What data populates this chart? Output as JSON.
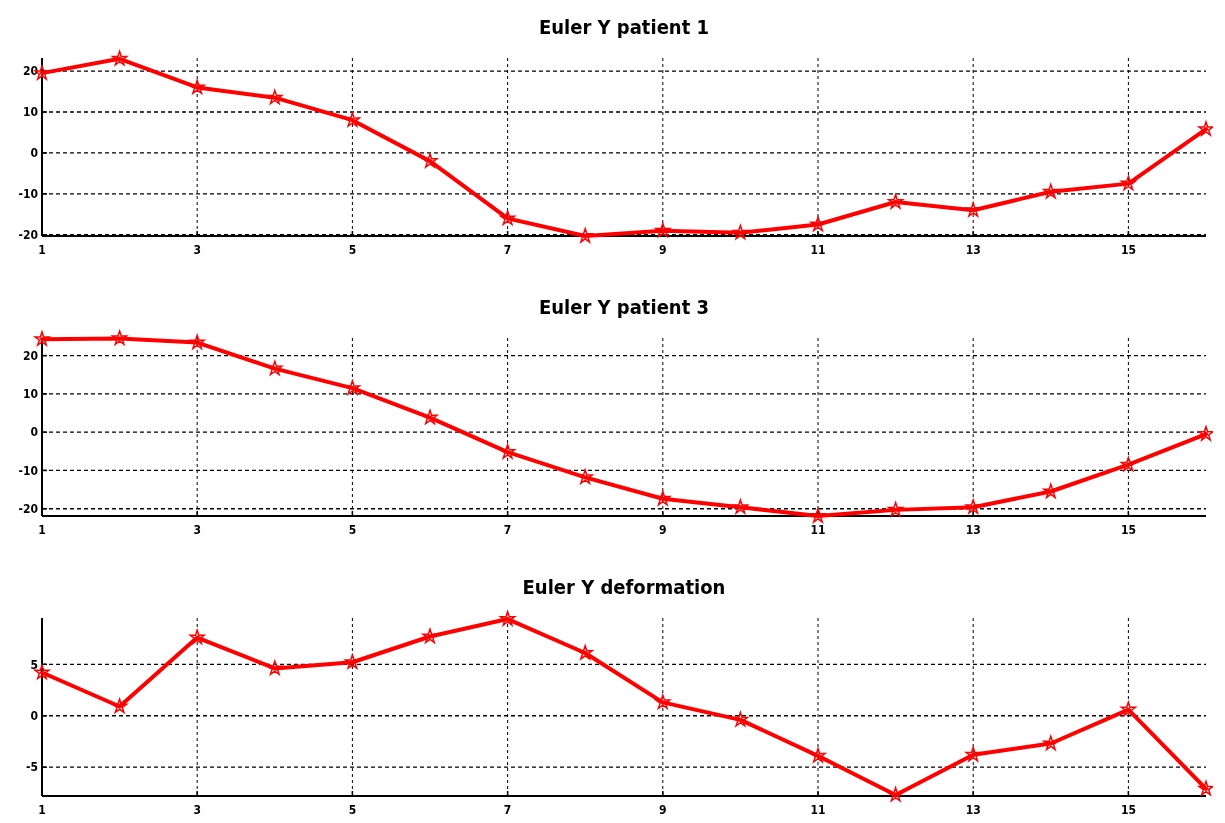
{
  "chart_data": [
    {
      "type": "line",
      "title": "Euler Y patient 1",
      "x": [
        1,
        2,
        3,
        4,
        5,
        6,
        7,
        8,
        9,
        10,
        11,
        12,
        13,
        14,
        15,
        16
      ],
      "xlim": [
        1,
        16
      ],
      "xticks": [
        1,
        3,
        5,
        7,
        9,
        11,
        13,
        15
      ],
      "ylim": [
        -20.3,
        23.2
      ],
      "yticks": [
        -20,
        -10,
        0,
        10,
        20
      ],
      "grid": true,
      "marker": "star",
      "line_style": "solid",
      "series": [
        {
          "color": "#ff0000",
          "values": [
            19.5,
            23,
            16,
            13.5,
            8,
            -2,
            -16,
            -20.3,
            -19,
            -19.5,
            -17.5,
            -12,
            -14,
            -9.5,
            -7.5,
            5.8
          ]
        }
      ]
    },
    {
      "type": "line",
      "title": "Euler Y patient 3",
      "x": [
        1,
        2,
        3,
        4,
        5,
        6,
        7,
        8,
        9,
        10,
        11,
        12,
        13,
        14,
        15,
        16
      ],
      "xlim": [
        1,
        16
      ],
      "xticks": [
        1,
        3,
        5,
        7,
        9,
        11,
        13,
        15
      ],
      "ylim": [
        -21.9,
        24.6
      ],
      "yticks": [
        -20,
        -10,
        0,
        10,
        20
      ],
      "grid": true,
      "marker": "star",
      "line_style": "solid",
      "series": [
        {
          "color": "#ff0000",
          "values": [
            24.3,
            24.5,
            23.4,
            16.6,
            11.5,
            3.8,
            -5.2,
            -11.8,
            -17.4,
            -19.6,
            -21.9,
            -20.3,
            -19.6,
            -15.5,
            -8.5,
            -0.5
          ]
        }
      ]
    },
    {
      "type": "line",
      "title": "Euler Y deformation",
      "x": [
        1,
        2,
        3,
        4,
        5,
        6,
        7,
        8,
        9,
        10,
        11,
        12,
        13,
        14,
        15,
        16
      ],
      "xlim": [
        1,
        16
      ],
      "xticks": [
        1,
        3,
        5,
        7,
        9,
        11,
        13,
        15
      ],
      "ylim": [
        -7.8,
        9.5
      ],
      "yticks": [
        -5,
        0,
        5
      ],
      "grid": true,
      "marker": "star",
      "line_style": "solid",
      "series": [
        {
          "color": "#ff0000",
          "values": [
            4.2,
            0.9,
            7.6,
            4.6,
            5.2,
            7.7,
            9.4,
            6.1,
            1.3,
            -0.4,
            -3.9,
            -7.7,
            -3.8,
            -2.7,
            0.6,
            -7.1
          ]
        }
      ]
    }
  ]
}
